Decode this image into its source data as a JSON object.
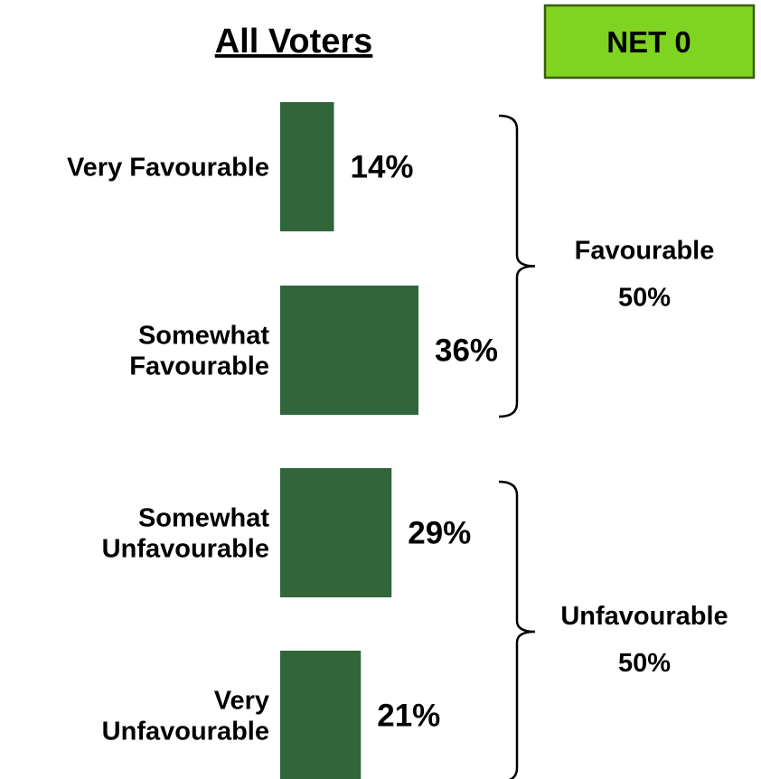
{
  "chart_data": {
    "type": "bar",
    "orientation": "horizontal",
    "title": "All Voters",
    "categories": [
      [
        "Very Favourable"
      ],
      [
        "Somewhat",
        "Favourable"
      ],
      [
        "Somewhat",
        "Unfavourable"
      ],
      [
        "Very",
        "Unfavourable"
      ]
    ],
    "values": [
      14,
      36,
      29,
      21
    ],
    "value_labels": [
      "14%",
      "36%",
      "29%",
      "21%"
    ],
    "groups": [
      {
        "name": "Favourable",
        "value_label": "50%",
        "members": [
          0,
          1
        ]
      },
      {
        "name": "Unfavourable",
        "value_label": "50%",
        "members": [
          2,
          3
        ]
      }
    ],
    "net_badge": "NET 0",
    "bar_color": "#30663a",
    "badge_color": "#7fd321",
    "grid": false,
    "legend": "none"
  }
}
